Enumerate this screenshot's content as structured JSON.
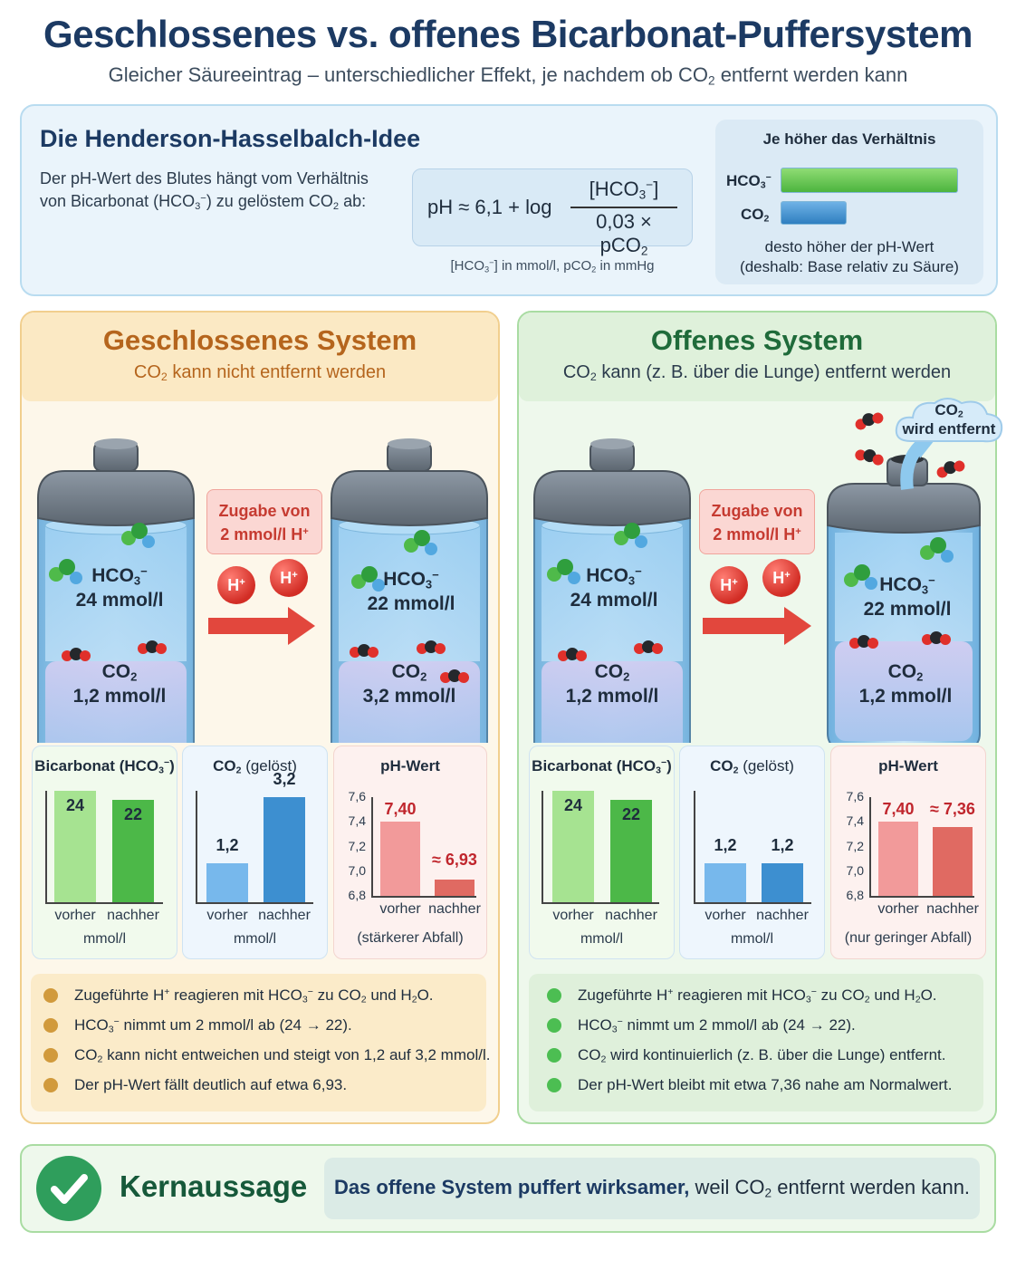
{
  "header": {
    "title": "Geschlossenes vs. offenes Bicarbonat-Puffersystem",
    "subtitle_pre": "Gleicher Säureeintrag – unterschiedlicher Effekt, je nachdem ob CO",
    "subtitle_sub": "2",
    "subtitle_post": " entfernt werden kann"
  },
  "hh": {
    "title": "Die Henderson-Hasselbalch-Idee",
    "line1": "Der pH-Wert des Blutes hängt vom Verhältnis",
    "line2_a": "von Bicarbonat (HCO",
    "line2_sub": "3",
    "line2_sup": "−",
    "line2_b": ") zu gelöstem CO",
    "line2_sub2": "2",
    "line2_c": " ab:",
    "formula_lhs": "pH ≈ 6,1 + log",
    "formula_num_a": "[HCO",
    "formula_num_sub": "3",
    "formula_num_sup": "−",
    "formula_num_b": "]",
    "formula_den_a": "0,03 × pCO",
    "formula_den_sub": "2",
    "units_a": "[HCO",
    "units_sub": "3",
    "units_sup": "−",
    "units_b": "] in mmol/l, pCO",
    "units_sub2": "2",
    "units_c": " in mmHg",
    "ratio_title": "Je höher das Verhältnis",
    "ratio_hco3_a": "HCO",
    "ratio_hco3_sub": "3",
    "ratio_hco3_sup": "−",
    "ratio_co2_a": "CO",
    "ratio_co2_sub": "2",
    "ratio_foot1": "desto höher der pH-Wert",
    "ratio_foot2": "(deshalb: Base relativ zu Säure)",
    "ratio_hco3_level": 1.0,
    "ratio_co2_level": 0.37
  },
  "closed": {
    "title": "Geschlossenes System",
    "sub_a": "CO",
    "sub_sub": "2",
    "sub_b": " kann nicht entfernt werden",
    "jar1": {
      "hco3": "24 mmol/l",
      "co2": "1,2 mmol/l"
    },
    "jar2": {
      "hco3": "22 mmol/l",
      "co2": "3,2 mmol/l"
    },
    "add_line1": "Zugabe von",
    "add_line2": "2 mmol/l H",
    "add_sup": "+",
    "hplus_label": "H",
    "hplus_sup": "+",
    "bicarb_title": "Bicarbonat (HCO",
    "co2_title": "CO",
    "co2_title_rest": " (gelöst)",
    "ph_title": "pH-Wert",
    "bicarb_values": [
      "24",
      "22"
    ],
    "co2_values": [
      "1,2",
      "3,2"
    ],
    "ph_values": [
      "7,40",
      "≈ 6,93"
    ],
    "x_before": "vorher",
    "x_after": "nachher",
    "unit": "mmol/l",
    "ph_note": "(stärkerer Abfall)",
    "ph_ticks": [
      "7,6",
      "7,4",
      "7,2",
      "7,0",
      "6,8"
    ],
    "bullets": [
      {
        "a": "Zugeführte H",
        "sup": "+",
        "b": " reagieren mit HCO",
        "sub": "3",
        "sup2": "−",
        "c": " zu CO",
        "sub2": "2",
        "d": " und H",
        "sub3": "2",
        "e": "O."
      },
      {
        "a": "HCO",
        "sub": "3",
        "sup": "−",
        "b": " nimmt um 2 mmol/l ab (24 → 22)."
      },
      {
        "a": "CO",
        "sub": "2",
        "b": " kann nicht entweichen und steigt von 1,2 auf 3,2 mmol/l."
      },
      {
        "a": "Der pH-Wert fällt deutlich auf etwa 6,93."
      }
    ]
  },
  "open": {
    "title": "Offenes System",
    "sub_a": "CO",
    "sub_sub": "2",
    "sub_b": " kann (z. B. über die Lunge) entfernt werden",
    "jar1": {
      "hco3": "24 mmol/l",
      "co2": "1,2 mmol/l"
    },
    "jar2": {
      "hco3": "22 mmol/l",
      "co2": "1,2 mmol/l"
    },
    "add_line1": "Zugabe von",
    "add_line2": "2 mmol/l H",
    "add_sup": "+",
    "cloud_a": "CO",
    "cloud_sub": "2",
    "cloud_b": "wird entfernt",
    "bicarb_values": [
      "24",
      "22"
    ],
    "co2_values": [
      "1,2",
      "1,2"
    ],
    "ph_values": [
      "7,40",
      "≈ 7,36"
    ],
    "ph_note": "(nur geringer Abfall)",
    "bullets": [
      {
        "a": "Zugeführte H",
        "sup": "+",
        "b": " reagieren mit HCO",
        "sub": "3",
        "sup2": "−",
        "c": " zu CO",
        "sub2": "2",
        "d": " und H",
        "sub3": "2",
        "e": "O."
      },
      {
        "a": "HCO",
        "sub": "3",
        "sup": "−",
        "b": " nimmt um 2 mmol/l ab (24 → 22)."
      },
      {
        "a": "CO",
        "sub": "2",
        "b": " wird kontinuierlich (z. B. über die Lunge) entfernt."
      },
      {
        "a": "Der pH-Wert bleibt mit etwa 7,36 nahe am Normalwert."
      }
    ]
  },
  "chart_data": [
    {
      "type": "bar",
      "title": "Bicarbonat (HCO3−)",
      "panel": "Geschlossenes System",
      "categories": [
        "vorher",
        "nachher"
      ],
      "values": [
        24,
        22
      ],
      "xlabel": "mmol/l"
    },
    {
      "type": "bar",
      "title": "CO2 (gelöst)",
      "panel": "Geschlossenes System",
      "categories": [
        "vorher",
        "nachher"
      ],
      "values": [
        1.2,
        3.2
      ],
      "xlabel": "mmol/l"
    },
    {
      "type": "bar",
      "title": "pH-Wert",
      "panel": "Geschlossenes System",
      "categories": [
        "vorher",
        "nachher"
      ],
      "values": [
        7.4,
        6.93
      ],
      "ylim": [
        6.8,
        7.6
      ],
      "yticks": [
        6.8,
        7.0,
        7.2,
        7.4,
        7.6
      ],
      "note": "(stärkerer Abfall)"
    },
    {
      "type": "bar",
      "title": "Bicarbonat (HCO3−)",
      "panel": "Offenes System",
      "categories": [
        "vorher",
        "nachher"
      ],
      "values": [
        24,
        22
      ],
      "xlabel": "mmol/l"
    },
    {
      "type": "bar",
      "title": "CO2 (gelöst)",
      "panel": "Offenes System",
      "categories": [
        "vorher",
        "nachher"
      ],
      "values": [
        1.2,
        1.2
      ],
      "xlabel": "mmol/l"
    },
    {
      "type": "bar",
      "title": "pH-Wert",
      "panel": "Offenes System",
      "categories": [
        "vorher",
        "nachher"
      ],
      "values": [
        7.4,
        7.36
      ],
      "ylim": [
        6.8,
        7.6
      ],
      "yticks": [
        6.8,
        7.0,
        7.2,
        7.4,
        7.6
      ],
      "note": "(nur geringer Abfall)"
    }
  ],
  "key": {
    "title": "Kernaussage",
    "bold": "Das offene System puffert wirksamer,",
    "rest_a": " weil CO",
    "rest_sub": "2",
    "rest_b": " entfernt werden kann."
  },
  "colors": {
    "title": "#1c3a63",
    "closed_accent": "#b5651d",
    "open_accent": "#1f6b3a",
    "green_light": "#a6e391",
    "green_dark": "#4cb848",
    "blue_light": "#77b8ec",
    "blue_dark": "#3d8fd0",
    "red_light": "#f29a9a",
    "red_dark": "#e06a62",
    "ph_red": "#c0262d",
    "closed_dot": "#d19a3c",
    "open_dot": "#4cbe52"
  }
}
